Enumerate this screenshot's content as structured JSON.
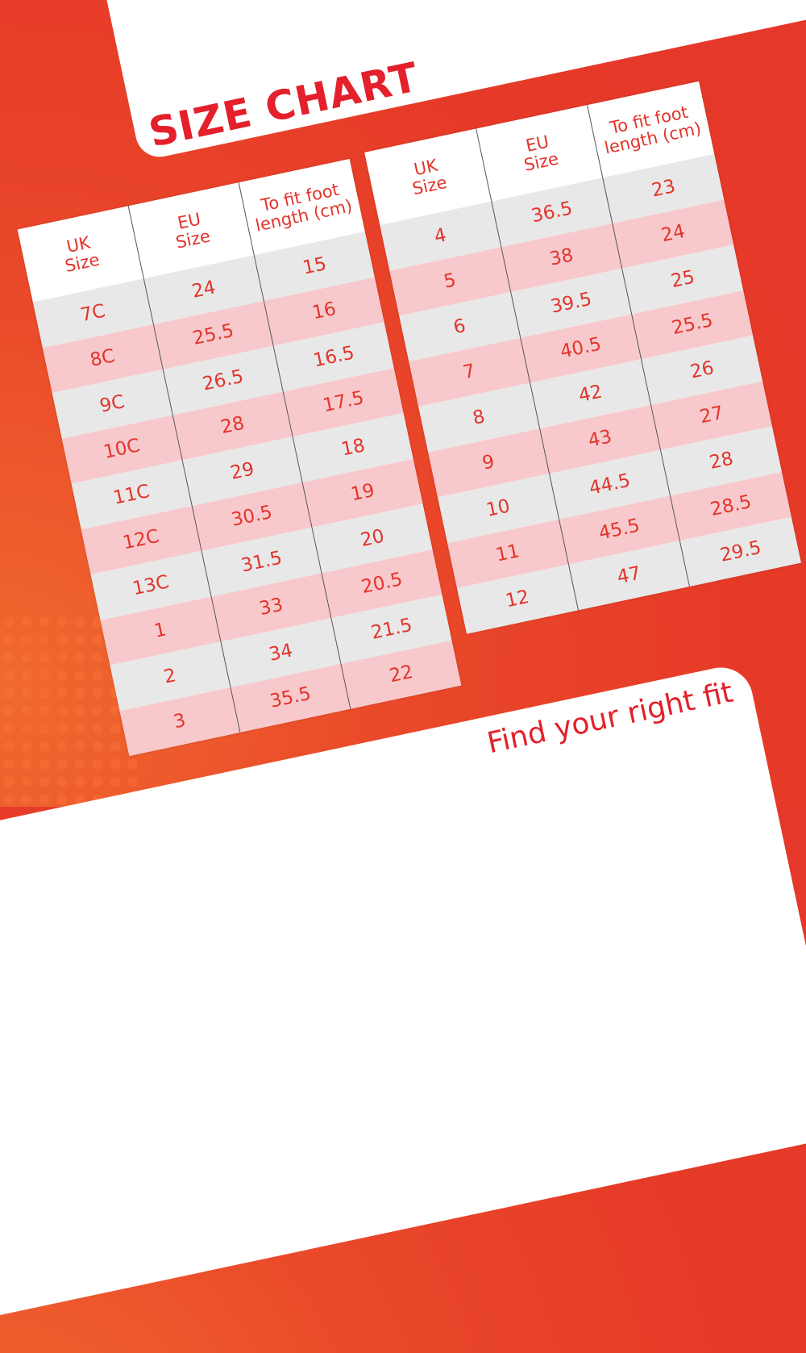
{
  "title": "SIZE CHART",
  "tagline": "Find your right fit",
  "colors": {
    "accent": "#e3202b",
    "background": "#e5372a",
    "row_gray": "#e8e8e8",
    "row_pink": "#f8c9cc"
  },
  "headers": {
    "uk_l1": "UK",
    "uk_l2": "Size",
    "eu_l1": "EU",
    "eu_l2": "Size",
    "foot_l1": "To fit foot",
    "foot_l2": "length (cm)"
  },
  "left_table": [
    [
      "7C",
      "24",
      "15"
    ],
    [
      "8C",
      "25.5",
      "16"
    ],
    [
      "9C",
      "26.5",
      "16.5"
    ],
    [
      "10C",
      "28",
      "17.5"
    ],
    [
      "11C",
      "29",
      "18"
    ],
    [
      "12C",
      "30.5",
      "19"
    ],
    [
      "13C",
      "31.5",
      "20"
    ],
    [
      "1",
      "33",
      "20.5"
    ],
    [
      "2",
      "34",
      "21.5"
    ],
    [
      "3",
      "35.5",
      "22"
    ]
  ],
  "right_table": [
    [
      "4",
      "36.5",
      "23"
    ],
    [
      "5",
      "38",
      "24"
    ],
    [
      "6",
      "39.5",
      "25"
    ],
    [
      "7",
      "40.5",
      "25.5"
    ],
    [
      "8",
      "42",
      "26"
    ],
    [
      "9",
      "43",
      "27"
    ],
    [
      "10",
      "44.5",
      "28"
    ],
    [
      "11",
      "45.5",
      "28.5"
    ],
    [
      "12",
      "47",
      "29.5"
    ]
  ]
}
